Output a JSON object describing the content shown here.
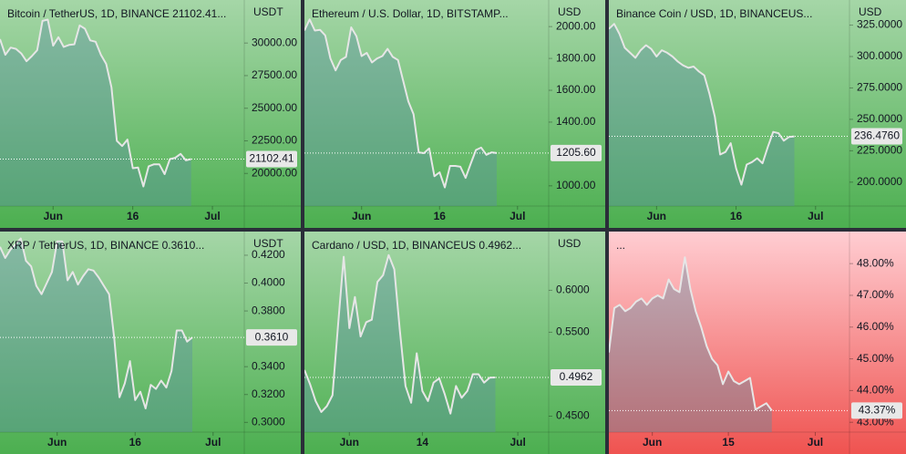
{
  "chart_data": [
    {
      "type": "line",
      "title": "Bitcoin / TetherUS, 1D, BINANCE  21102.41...",
      "currency": "USDT",
      "last_label": "21102.41",
      "background": [
        "#a5d6a7",
        "#4caf50"
      ],
      "color": "#e6e6e6",
      "area_color": "#5c8fa6",
      "values": [
        30300,
        29100,
        29650,
        29550,
        29200,
        28600,
        29000,
        29450,
        31700,
        31800,
        29800,
        30450,
        29700,
        29850,
        29900,
        31350,
        31100,
        30200,
        30100,
        29100,
        28400,
        26600,
        22500,
        22100,
        22600,
        20400,
        20450,
        19000,
        20550,
        20700,
        20700,
        19950,
        21100,
        21200,
        21500,
        21000,
        21102.41
      ],
      "xlim": [
        0,
        46
      ],
      "xticks": [
        {
          "value": 10,
          "label": "Jun"
        },
        {
          "value": 25,
          "label": "16"
        },
        {
          "value": 40,
          "label": "Jul"
        }
      ],
      "ylim": [
        17500,
        33300
      ],
      "yticks": [
        {
          "value": 30000,
          "label": "30000.00"
        },
        {
          "value": 27500,
          "label": "27500.00"
        },
        {
          "value": 25000,
          "label": "25000.00"
        },
        {
          "value": 22500,
          "label": "22500.00"
        },
        {
          "value": 20000,
          "label": "20000.00"
        }
      ]
    },
    {
      "type": "line",
      "title": "Ethereum / U.S. Dollar, 1D, BITSTAMP...",
      "currency": "USD",
      "last_label": "1205.60",
      "background": [
        "#a5d6a7",
        "#4caf50"
      ],
      "color": "#e6e6e6",
      "area_color": "#5c8fa6",
      "values": [
        1975,
        2045,
        1975,
        1980,
        1945,
        1800,
        1725,
        1790,
        1810,
        1995,
        1940,
        1815,
        1835,
        1775,
        1800,
        1815,
        1860,
        1810,
        1790,
        1660,
        1530,
        1450,
        1210,
        1205,
        1235,
        1060,
        1085,
        990,
        1125,
        1125,
        1120,
        1050,
        1140,
        1225,
        1240,
        1195,
        1210,
        1205.6
      ],
      "xlim": [
        0,
        47
      ],
      "xticks": [
        {
          "value": 11,
          "label": "Jun"
        },
        {
          "value": 26,
          "label": "16"
        },
        {
          "value": 41,
          "label": "Jul"
        }
      ],
      "ylim": [
        873,
        2167
      ],
      "yticks": [
        {
          "value": 2000,
          "label": "2000.00"
        },
        {
          "value": 1800,
          "label": "1800.00"
        },
        {
          "value": 1600,
          "label": "1600.00"
        },
        {
          "value": 1400,
          "label": "1400.00"
        },
        {
          "value": 1000,
          "label": "1000.00"
        }
      ]
    },
    {
      "type": "line",
      "title": "Binance Coin / USD, 1D, BINANCEUS...",
      "currency": "USD",
      "last_label": "236.4760",
      "background": [
        "#a5d6a7",
        "#4caf50"
      ],
      "color": "#e6e6e6",
      "area_color": "#5c8fa6",
      "values": [
        322,
        326,
        318,
        307,
        303,
        299,
        305,
        309,
        306,
        300,
        305,
        303,
        300,
        296,
        293,
        291,
        292,
        288,
        285,
        270,
        252,
        222,
        224,
        231,
        211,
        198,
        214,
        216,
        219,
        215,
        228,
        240,
        239,
        233,
        236,
        236.476
      ],
      "xlim": [
        0,
        45.4
      ],
      "xticks": [
        {
          "value": 9,
          "label": "Jun"
        },
        {
          "value": 24,
          "label": "16"
        },
        {
          "value": 39,
          "label": "Jul"
        }
      ],
      "ylim": [
        181,
        345
      ],
      "yticks": [
        {
          "value": 325,
          "label": "325.0000"
        },
        {
          "value": 300,
          "label": "300.0000"
        },
        {
          "value": 275,
          "label": "275.0000"
        },
        {
          "value": 250,
          "label": "250.0000"
        },
        {
          "value": 225,
          "label": "225.0000"
        },
        {
          "value": 200,
          "label": "200.0000"
        }
      ]
    },
    {
      "type": "line",
      "title": "XRP / TetherUS, 1D, BINANCE  0.3610...",
      "currency": "USDT",
      "last_label": "0.3610",
      "background": [
        "#a5d6a7",
        "#4caf50"
      ],
      "color": "#e6e6e6",
      "area_color": "#5c8fa6",
      "values": [
        0.426,
        0.418,
        0.424,
        0.428,
        0.432,
        0.416,
        0.412,
        0.398,
        0.392,
        0.4,
        0.408,
        0.43,
        0.43,
        0.402,
        0.408,
        0.399,
        0.405,
        0.41,
        0.409,
        0.404,
        0.398,
        0.392,
        0.36,
        0.318,
        0.328,
        0.344,
        0.316,
        0.322,
        0.31,
        0.327,
        0.324,
        0.33,
        0.325,
        0.337,
        0.366,
        0.366,
        0.358,
        0.361
      ],
      "xlim": [
        0,
        47
      ],
      "xticks": [
        {
          "value": 11,
          "label": "Jun"
        },
        {
          "value": 26,
          "label": "16"
        },
        {
          "value": 41,
          "label": "Jul"
        }
      ],
      "ylim": [
        0.293,
        0.437
      ],
      "yticks": [
        {
          "value": 0.42,
          "label": "0.4200"
        },
        {
          "value": 0.4,
          "label": "0.4000"
        },
        {
          "value": 0.38,
          "label": "0.3800"
        },
        {
          "value": 0.34,
          "label": "0.3400"
        },
        {
          "value": 0.32,
          "label": "0.3200"
        },
        {
          "value": 0.3,
          "label": "0.3000"
        }
      ]
    },
    {
      "type": "line",
      "title": "Cardano / USD, 1D, BINANCEUS  0.4962...",
      "currency": "USD",
      "last_label": "0.4962",
      "background": [
        "#a5d6a7",
        "#4caf50"
      ],
      "color": "#e6e6e6",
      "area_color": "#5c8fa6",
      "values": [
        0.505,
        0.488,
        0.468,
        0.455,
        0.462,
        0.475,
        0.56,
        0.64,
        0.555,
        0.592,
        0.545,
        0.562,
        0.565,
        0.61,
        0.618,
        0.642,
        0.625,
        0.552,
        0.486,
        0.466,
        0.525,
        0.48,
        0.468,
        0.49,
        0.495,
        0.476,
        0.453,
        0.486,
        0.472,
        0.48,
        0.5,
        0.5,
        0.49,
        0.496,
        0.4962
      ],
      "xlim": [
        0,
        43.5
      ],
      "xticks": [
        {
          "value": 8,
          "label": "Jun"
        },
        {
          "value": 21,
          "label": "14"
        },
        {
          "value": 38,
          "label": "Jul"
        }
      ],
      "ylim": [
        0.431,
        0.67
      ],
      "yticks": [
        {
          "value": 0.6,
          "label": "0.6000"
        },
        {
          "value": 0.55,
          "label": "0.5500"
        },
        {
          "value": 0.45,
          "label": "0.4500"
        }
      ]
    },
    {
      "type": "line",
      "title": "...",
      "last_label": "43.37%",
      "background": [
        "#ffcdd2",
        "#ef5350"
      ],
      "color": "#e6e6e6",
      "area_color": "#5c8fa6",
      "values": [
        45.2,
        46.6,
        46.7,
        46.5,
        46.6,
        46.8,
        46.9,
        46.7,
        46.9,
        47.0,
        46.9,
        47.5,
        47.2,
        47.1,
        48.2,
        47.2,
        46.5,
        46.0,
        45.4,
        45.0,
        44.8,
        44.2,
        44.6,
        44.3,
        44.2,
        44.3,
        44.4,
        43.4,
        43.5,
        43.6,
        43.37
      ],
      "xlim": [
        0,
        44.3
      ],
      "xticks": [
        {
          "value": 8,
          "label": "Jun"
        },
        {
          "value": 22,
          "label": "15"
        },
        {
          "value": 38,
          "label": "Jul"
        }
      ],
      "ylim": [
        42.69,
        49.01
      ],
      "yticks": [
        {
          "value": 48,
          "label": "48.00%"
        },
        {
          "value": 47,
          "label": "47.00%"
        },
        {
          "value": 46,
          "label": "46.00%"
        },
        {
          "value": 45,
          "label": "45.00%"
        },
        {
          "value": 44,
          "label": "44.00%"
        },
        {
          "value": 43,
          "label": "43.00%"
        }
      ]
    }
  ]
}
